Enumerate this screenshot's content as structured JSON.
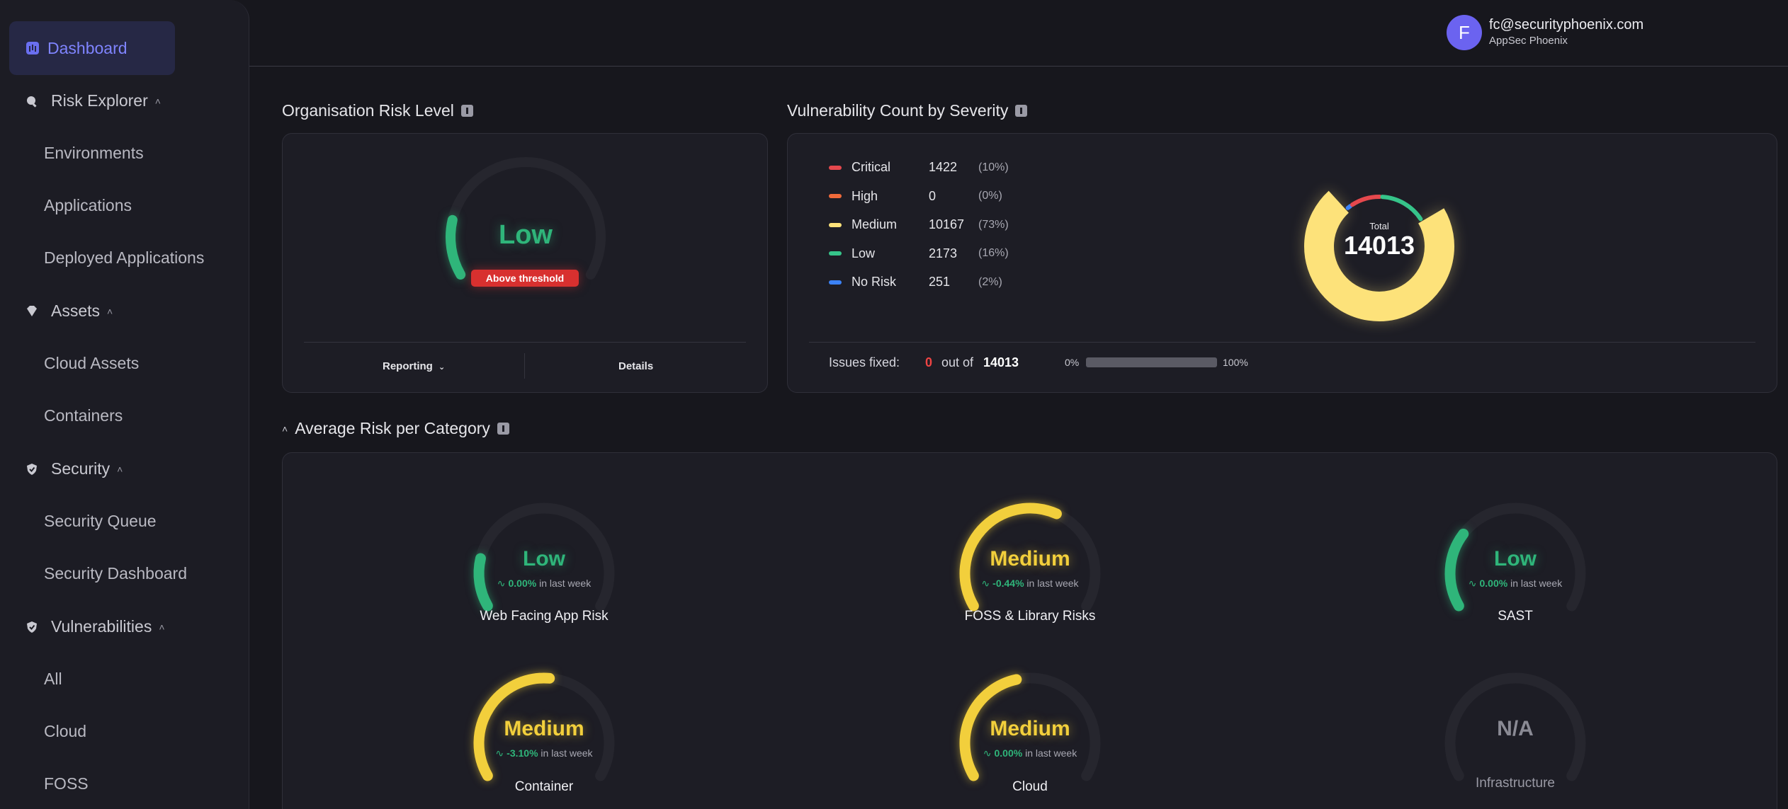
{
  "sidebar": {
    "dashboard": "Dashboard",
    "groups": [
      {
        "label": "Risk Explorer",
        "items": [
          "Environments",
          "Applications",
          "Deployed Applications"
        ]
      },
      {
        "label": "Assets",
        "items": [
          "Cloud Assets",
          "Containers"
        ]
      },
      {
        "label": "Security",
        "items": [
          "Security Queue",
          "Security Dashboard"
        ]
      },
      {
        "label": "Vulnerabilities",
        "items": [
          "All",
          "Cloud",
          "FOSS"
        ]
      }
    ]
  },
  "user": {
    "initial": "F",
    "email": "fc@securityphoenix.com",
    "org": "AppSec Phoenix"
  },
  "org_risk": {
    "title": "Organisation Risk Level",
    "level": "Low",
    "level_color": "#2fb57a",
    "level_fraction": 0.18,
    "badge": "Above threshold",
    "reporting_label": "Reporting",
    "details_label": "Details"
  },
  "vuln": {
    "title": "Vulnerability Count by Severity",
    "total_label": "Total",
    "total": "14013",
    "rows": [
      {
        "name": "Critical",
        "count": "1422",
        "pct": "(10%)",
        "color": "#e5484d"
      },
      {
        "name": "High",
        "count": "0",
        "pct": "(0%)",
        "color": "#f06a3a"
      },
      {
        "name": "Medium",
        "count": "10167",
        "pct": "(73%)",
        "color": "#fde27a"
      },
      {
        "name": "Low",
        "count": "2173",
        "pct": "(16%)",
        "color": "#36c48a"
      },
      {
        "name": "No Risk",
        "count": "251",
        "pct": "(2%)",
        "color": "#3b82f6"
      }
    ],
    "fixed_label": "Issues fixed:",
    "fixed_value": "0",
    "fixed_of": "out of",
    "fixed_total": "14013",
    "fixed_fraction": 0,
    "pct_min": "0%",
    "pct_max": "100%"
  },
  "categories": {
    "title": "Average Risk per Category",
    "items": [
      {
        "name": "Web Facing App Risk",
        "level": "Low",
        "color": "#2fb57a",
        "fraction": 0.18,
        "delta": "0.00%",
        "delta_suffix": "in last week"
      },
      {
        "name": "FOSS & Library Risks",
        "level": "Medium",
        "color": "#f2cf3c",
        "fraction": 0.6,
        "delta": "-0.44%",
        "delta_suffix": "in last week"
      },
      {
        "name": "SAST",
        "level": "Low",
        "color": "#2fb57a",
        "fraction": 0.28,
        "delta": "0.00%",
        "delta_suffix": "in last week"
      },
      {
        "name": "Container",
        "level": "Medium",
        "color": "#f2cf3c",
        "fraction": 0.52,
        "delta": "-3.10%",
        "delta_suffix": "in last week"
      },
      {
        "name": "Cloud",
        "level": "Medium",
        "color": "#f2cf3c",
        "fraction": 0.45,
        "delta": "0.00%",
        "delta_suffix": "in last week"
      },
      {
        "name": "Infrastructure",
        "level": "N/A",
        "color": "#8a8a94",
        "fraction": 0,
        "delta": "",
        "delta_suffix": ""
      }
    ]
  }
}
